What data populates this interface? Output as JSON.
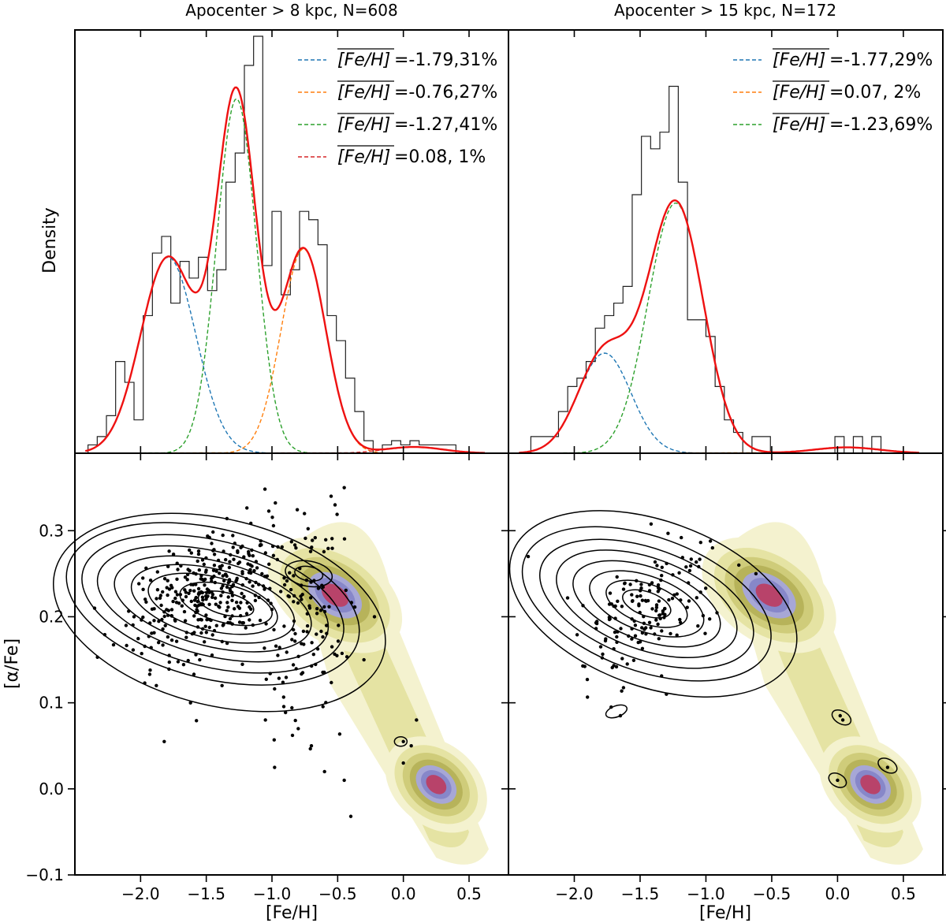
{
  "chart_data": [
    {
      "type": "histogram",
      "panel": "top-left",
      "title": "Apocenter > 8 kpc, N=608",
      "ylabel": "Density",
      "xlim": [
        -2.5,
        0.8
      ],
      "legend_position": "top-right",
      "bin_edges": [
        -2.4,
        -2.33,
        -2.26,
        -2.19,
        -2.12,
        -2.05,
        -1.98,
        -1.91,
        -1.84,
        -1.77,
        -1.7,
        -1.63,
        -1.56,
        -1.49,
        -1.42,
        -1.35,
        -1.28,
        -1.21,
        -1.14,
        -1.07,
        -1.0,
        -0.93,
        -0.86,
        -0.79,
        -0.72,
        -0.65,
        -0.58,
        -0.51,
        -0.44,
        -0.37,
        -0.3,
        -0.23,
        -0.16,
        -0.09,
        -0.02,
        0.05,
        0.12,
        0.19,
        0.26,
        0.33,
        0.4
      ],
      "hist_heights": [
        0.02,
        0.04,
        0.09,
        0.22,
        0.17,
        0.08,
        0.33,
        0.48,
        0.52,
        0.36,
        0.46,
        0.42,
        0.47,
        0.39,
        0.44,
        0.65,
        0.72,
        0.93,
        1.0,
        0.45,
        0.58,
        0.38,
        0.44,
        0.58,
        0.56,
        0.5,
        0.33,
        0.27,
        0.18,
        0.1,
        0.03,
        0.0,
        0.02,
        0.03,
        0.02,
        0.03,
        0.02,
        0.02,
        0.02,
        0.02
      ],
      "components": [
        {
          "label": "=-1.79,31%",
          "mean": -1.79,
          "weight_pct": 31,
          "color": "#1f77b4"
        },
        {
          "label": "=-0.76,27%",
          "mean": -0.76,
          "weight_pct": 27,
          "color": "#ff7f0e"
        },
        {
          "label": "=-1.27,41%",
          "mean": -1.27,
          "weight_pct": 41,
          "color": "#2ca02c"
        },
        {
          "label": "=0.08, 1%",
          "mean": 0.08,
          "weight_pct": 1,
          "color": "#d62728"
        }
      ],
      "total_color": "#ee1111"
    },
    {
      "type": "histogram",
      "panel": "top-right",
      "title": "Apocenter > 15 kpc, N=172",
      "xlim": [
        -2.5,
        0.8
      ],
      "legend_position": "top-right",
      "bin_edges": [
        -2.4,
        -2.33,
        -2.26,
        -2.19,
        -2.12,
        -2.05,
        -1.98,
        -1.91,
        -1.84,
        -1.77,
        -1.7,
        -1.63,
        -1.56,
        -1.49,
        -1.42,
        -1.35,
        -1.28,
        -1.21,
        -1.14,
        -1.07,
        -1.0,
        -0.93,
        -0.86,
        -0.79,
        -0.72,
        -0.65,
        -0.58,
        -0.51,
        -0.44,
        -0.37,
        -0.3,
        -0.23,
        -0.16,
        -0.09,
        -0.02,
        0.05,
        0.12,
        0.19,
        0.26,
        0.33,
        0.4
      ],
      "hist_heights": [
        0.0,
        0.04,
        0.04,
        0.04,
        0.1,
        0.16,
        0.18,
        0.22,
        0.3,
        0.33,
        0.36,
        0.4,
        0.62,
        0.76,
        0.73,
        0.77,
        0.88,
        0.65,
        0.32,
        0.32,
        0.28,
        0.16,
        0.08,
        0.05,
        0.0,
        0.04,
        0.04,
        0.0,
        0.0,
        0.0,
        0.0,
        0.0,
        0.0,
        0.0,
        0.04,
        0.0,
        0.04,
        0.0,
        0.04,
        0.0
      ],
      "components": [
        {
          "label": "=-1.77,29%",
          "mean": -1.77,
          "weight_pct": 29,
          "color": "#1f77b4"
        },
        {
          "label": "=0.07, 2%",
          "mean": 0.07,
          "weight_pct": 2,
          "color": "#ff7f0e"
        },
        {
          "label": "=-1.23,69%",
          "mean": -1.23,
          "weight_pct": 69,
          "color": "#2ca02c"
        }
      ],
      "total_color": "#ee1111"
    },
    {
      "type": "scatter",
      "panel": "bottom-left",
      "xlabel": "[Fe/H]",
      "ylabel": "[α/Fe]",
      "xlim": [
        -2.5,
        0.8
      ],
      "ylim": [
        -0.1,
        0.39
      ],
      "x_ticks": [
        "−2.0",
        "−1.5",
        "−1.0",
        "−0.5",
        "0.0",
        "0.5"
      ],
      "x_tick_values": [
        -2.0,
        -1.5,
        -1.0,
        -0.5,
        0.0,
        0.5
      ],
      "y_ticks": [
        "−0.1",
        "0.0",
        "0.1",
        "0.2",
        "0.3"
      ],
      "y_tick_values": [
        -0.1,
        0.0,
        0.1,
        0.2,
        0.3
      ],
      "outliers": [
        [
          -2.35,
          0.21
        ],
        [
          -2.05,
          0.2
        ],
        [
          -1.88,
          0.12
        ],
        [
          -1.82,
          0.055
        ],
        [
          -1.62,
          0.1
        ],
        [
          -1.55,
          0.15
        ],
        [
          -1.38,
          0.12
        ],
        [
          -1.05,
          0.08
        ],
        [
          -0.98,
          0.025
        ],
        [
          -0.45,
          0.35
        ],
        [
          -0.52,
          0.33
        ],
        [
          -0.55,
          0.34
        ],
        [
          -0.4,
          -0.032
        ],
        [
          -0.22,
          0.2
        ],
        [
          -0.3,
          0.15
        ],
        [
          0.0,
          0.055
        ],
        [
          0.06,
          0.05
        ],
        [
          0.0,
          0.03
        ],
        [
          0.1,
          0.08
        ],
        [
          -0.45,
          0.01
        ],
        [
          -0.6,
          0.02
        ],
        [
          -0.7,
          0.05
        ],
        [
          -0.8,
          0.07
        ]
      ],
      "kde_color_scale": [
        "#f4f2cf",
        "#e5e3a3",
        "#cfcc7a",
        "#b7b35a",
        "#a7a7d6",
        "#8787c9",
        "#b8436a"
      ]
    },
    {
      "type": "scatter",
      "panel": "bottom-right",
      "xlabel": "[Fe/H]",
      "xlim": [
        -2.5,
        0.8
      ],
      "ylim": [
        -0.1,
        0.39
      ],
      "x_ticks": [
        "−2.0",
        "−1.5",
        "−1.0",
        "−0.5",
        "0.0",
        "0.5"
      ],
      "x_tick_values": [
        -2.0,
        -1.5,
        -1.0,
        -0.5,
        0.0,
        0.5
      ],
      "outliers": [
        [
          -2.35,
          0.27
        ],
        [
          -1.72,
          0.095
        ],
        [
          -1.65,
          0.085
        ],
        [
          -1.3,
          0.11
        ],
        [
          0.02,
          0.085
        ],
        [
          0.04,
          0.08
        ],
        [
          0.0,
          0.01
        ],
        [
          0.38,
          0.025
        ],
        [
          -0.75,
          0.26
        ],
        [
          -0.62,
          0.25
        ],
        [
          -0.95,
          0.28
        ]
      ],
      "kde_color_scale": [
        "#f4f2cf",
        "#e5e3a3",
        "#cfcc7a",
        "#b7b35a",
        "#a7a7d6",
        "#8787c9",
        "#b8436a"
      ]
    }
  ]
}
